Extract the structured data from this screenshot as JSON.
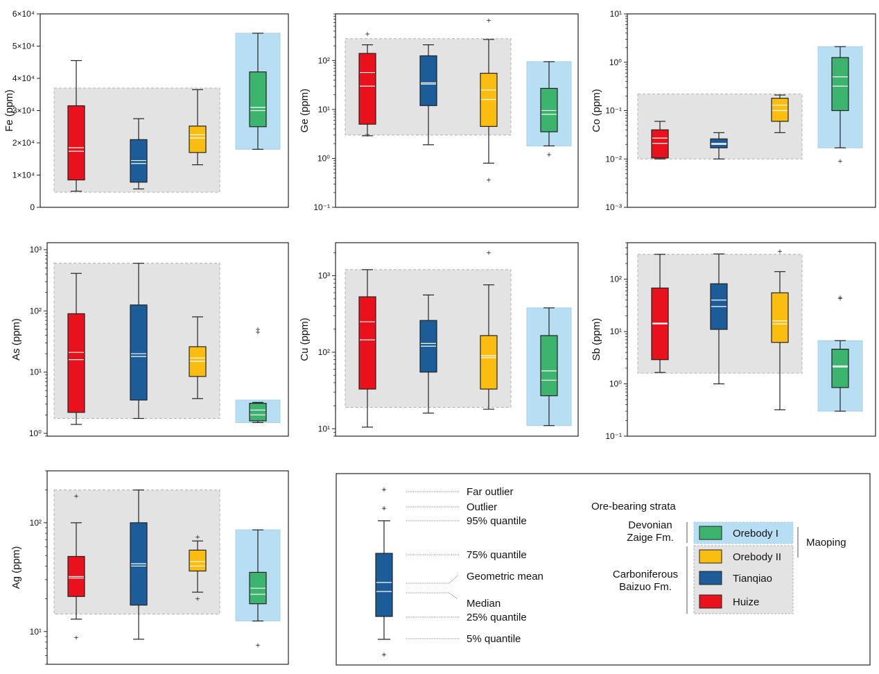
{
  "colors": {
    "Huize": "#e8111c",
    "Tianqiao": "#1c5c98",
    "Orebody II": "#fbbd0f",
    "Orebody I": "#3cb46e",
    "range_gray": "#e3e3e3",
    "range_blue": "#b8def4",
    "mean_line": "#ffffff",
    "median_line": "#ffffff"
  },
  "chart_data": [
    {
      "type": "box",
      "ylabel": "Fe (ppm)",
      "yscale": "linear",
      "ylim": [
        0,
        60000
      ],
      "yticks": [
        0,
        10000,
        20000,
        30000,
        40000,
        50000,
        60000
      ],
      "yticklabels": [
        "0",
        "1×10⁴",
        "2×10⁴",
        "3×10⁴",
        "4×10⁴",
        "5×10⁴",
        "6×10⁴"
      ],
      "range_boxes": [
        {
          "group": "Tianqiao-Huize",
          "color": "gray",
          "from": 0,
          "to": 2,
          "low": 4700,
          "high": 37000
        },
        {
          "group": "Maoping",
          "color": "blue",
          "from": 3,
          "to": 3,
          "low": 18000,
          "high": 54000
        }
      ],
      "series": [
        {
          "name": "Huize",
          "whisker_low": 5000,
          "q1": 8500,
          "median": 17400,
          "mean": 18500,
          "q3": 31500,
          "whisker_high": 45500,
          "outliers": []
        },
        {
          "name": "Tianqiao",
          "whisker_low": 5700,
          "q1": 7800,
          "median": 13600,
          "mean": 14500,
          "q3": 21000,
          "whisker_high": 27500,
          "outliers": []
        },
        {
          "name": "Orebody II",
          "whisker_low": 13200,
          "q1": 17000,
          "median": 21500,
          "mean": 22500,
          "q3": 25200,
          "whisker_high": 36500,
          "outliers": []
        },
        {
          "name": "Orebody I",
          "whisker_low": 18000,
          "q1": 25000,
          "median": 30000,
          "mean": 31000,
          "q3": 42000,
          "whisker_high": 54000,
          "outliers": []
        }
      ]
    },
    {
      "type": "box",
      "ylabel": "Ge (ppm)",
      "yscale": "log",
      "ylim": [
        0.1,
        900
      ],
      "yticks": [
        0.1,
        1,
        10,
        100
      ],
      "yticklabels": [
        "10⁻¹",
        "10⁰",
        "10¹",
        "10²"
      ],
      "range_boxes": [
        {
          "group": "Tianqiao-Huize",
          "color": "gray",
          "from": 0,
          "to": 2,
          "low": 3,
          "high": 280
        },
        {
          "group": "Maoping",
          "color": "blue",
          "from": 3,
          "to": 3,
          "low": 1.8,
          "high": 95
        }
      ],
      "series": [
        {
          "name": "Huize",
          "whisker_low": 2.9,
          "q1": 5,
          "median": 30,
          "mean": 57,
          "q3": 140,
          "whisker_high": 210,
          "outliers": [
            350,
            3.1
          ]
        },
        {
          "name": "Tianqiao",
          "whisker_low": 1.9,
          "q1": 12,
          "median": 33,
          "mean": 35,
          "q3": 125,
          "whisker_high": 210,
          "outliers": []
        },
        {
          "name": "Orebody II",
          "whisker_low": 0.8,
          "q1": 4.5,
          "median": 16,
          "mean": 25,
          "q3": 55,
          "whisker_high": 270,
          "outliers": [
            660,
            0.36
          ]
        },
        {
          "name": "Orebody I",
          "whisker_low": 1.8,
          "q1": 3.5,
          "median": 8,
          "mean": 9.5,
          "q3": 27,
          "whisker_high": 95,
          "outliers": [
            1.2
          ]
        }
      ]
    },
    {
      "type": "box",
      "ylabel": "Co (ppm)",
      "yscale": "log",
      "ylim": [
        0.001,
        10
      ],
      "yticks": [
        0.001,
        0.01,
        0.1,
        1,
        10
      ],
      "yticklabels": [
        "10⁻³",
        "10⁻²",
        "10⁻¹",
        "10⁰",
        "10¹"
      ],
      "range_boxes": [
        {
          "group": "Tianqiao-Huize",
          "color": "gray",
          "from": 0,
          "to": 2,
          "low": 0.01,
          "high": 0.22
        },
        {
          "group": "Maoping",
          "color": "blue",
          "from": 3,
          "to": 3,
          "low": 0.017,
          "high": 2.1
        }
      ],
      "series": [
        {
          "name": "Huize",
          "whisker_low": 0.01,
          "q1": 0.0105,
          "median": 0.021,
          "mean": 0.027,
          "q3": 0.04,
          "whisker_high": 0.06,
          "outliers": []
        },
        {
          "name": "Tianqiao",
          "whisker_low": 0.01,
          "q1": 0.017,
          "median": 0.02,
          "mean": 0.021,
          "q3": 0.026,
          "whisker_high": 0.035,
          "outliers": []
        },
        {
          "name": "Orebody II",
          "whisker_low": 0.035,
          "q1": 0.06,
          "median": 0.1,
          "mean": 0.13,
          "q3": 0.18,
          "whisker_high": 0.21,
          "outliers": []
        },
        {
          "name": "Orebody I",
          "whisker_low": 0.017,
          "q1": 0.1,
          "median": 0.32,
          "mean": 0.5,
          "q3": 1.25,
          "whisker_high": 2.1,
          "outliers": [
            0.009
          ]
        }
      ]
    },
    {
      "type": "box",
      "ylabel": "As (ppm)",
      "yscale": "log",
      "ylim": [
        0.9,
        1300
      ],
      "yticks": [
        1,
        10,
        100,
        1000
      ],
      "yticklabels": [
        "10⁰",
        "10¹",
        "10²",
        "10³"
      ],
      "range_boxes": [
        {
          "group": "Tianqiao-Huize",
          "color": "gray",
          "from": 0,
          "to": 2,
          "low": 1.75,
          "high": 600
        },
        {
          "group": "Maoping",
          "color": "blue",
          "from": 3,
          "to": 3,
          "low": 1.5,
          "high": 3.5
        }
      ],
      "series": [
        {
          "name": "Huize",
          "whisker_low": 1.4,
          "q1": 2.2,
          "median": 16,
          "mean": 21,
          "q3": 90,
          "whisker_high": 410,
          "outliers": []
        },
        {
          "name": "Tianqiao",
          "whisker_low": 1.75,
          "q1": 3.5,
          "median": 18,
          "mean": 20,
          "q3": 125,
          "whisker_high": 600,
          "outliers": []
        },
        {
          "name": "Orebody II",
          "whisker_low": 3.7,
          "q1": 8.5,
          "median": 15,
          "mean": 17,
          "q3": 26,
          "whisker_high": 80,
          "outliers": []
        },
        {
          "name": "Orebody I",
          "whisker_low": 1.5,
          "q1": 1.6,
          "median": 2,
          "mean": 2.4,
          "q3": 3.1,
          "whisker_high": 3.2,
          "outliers": [
            45,
            50
          ]
        }
      ]
    },
    {
      "type": "box",
      "ylabel": "Cu (ppm)",
      "yscale": "log",
      "ylim": [
        8,
        2700
      ],
      "yticks": [
        10,
        100,
        1000
      ],
      "yticklabels": [
        "10¹",
        "10²",
        "10³"
      ],
      "range_boxes": [
        {
          "group": "Tianqiao-Huize",
          "color": "gray",
          "from": 0,
          "to": 2,
          "low": 19,
          "high": 1200
        },
        {
          "group": "Maoping",
          "color": "blue",
          "from": 3,
          "to": 3,
          "low": 11,
          "high": 380
        }
      ],
      "series": [
        {
          "name": "Huize",
          "whisker_low": 10.5,
          "q1": 33,
          "median": 145,
          "mean": 250,
          "q3": 530,
          "whisker_high": 1200,
          "outliers": []
        },
        {
          "name": "Tianqiao",
          "whisker_low": 16,
          "q1": 55,
          "median": 120,
          "mean": 130,
          "q3": 260,
          "whisker_high": 560,
          "outliers": []
        },
        {
          "name": "Orebody II",
          "whisker_low": 18,
          "q1": 33,
          "median": 85,
          "mean": 90,
          "q3": 165,
          "whisker_high": 760,
          "outliers": [
            2000
          ]
        },
        {
          "name": "Orebody I",
          "whisker_low": 11,
          "q1": 27,
          "median": 43,
          "mean": 57,
          "q3": 165,
          "whisker_high": 380,
          "outliers": []
        }
      ]
    },
    {
      "type": "box",
      "ylabel": "Sb (ppm)",
      "yscale": "log",
      "ylim": [
        0.1,
        500
      ],
      "yticks": [
        0.1,
        1,
        10,
        100
      ],
      "yticklabels": [
        "10⁻¹",
        "10⁰",
        "10¹",
        "10²"
      ],
      "range_boxes": [
        {
          "group": "Tianqiao-Huize",
          "color": "gray",
          "from": 0,
          "to": 2,
          "low": 1.6,
          "high": 300
        },
        {
          "group": "Maoping",
          "color": "blue",
          "from": 3,
          "to": 3,
          "low": 0.3,
          "high": 6.7
        }
      ],
      "series": [
        {
          "name": "Huize",
          "whisker_low": 1.65,
          "q1": 2.9,
          "median": 14,
          "mean": 14.5,
          "q3": 68,
          "whisker_high": 300,
          "outliers": []
        },
        {
          "name": "Tianqiao",
          "whisker_low": 1,
          "q1": 11,
          "median": 30,
          "mean": 40,
          "q3": 82,
          "whisker_high": 305,
          "outliers": []
        },
        {
          "name": "Orebody II",
          "whisker_low": 0.32,
          "q1": 6.2,
          "median": 14,
          "mean": 16,
          "q3": 55,
          "whisker_high": 140,
          "outliers": [
            340
          ]
        },
        {
          "name": "Orebody I",
          "whisker_low": 0.3,
          "q1": 0.85,
          "median": 2.1,
          "mean": 2.2,
          "q3": 4.6,
          "whisker_high": 6.7,
          "outliers": [
            43,
            45
          ]
        }
      ]
    },
    {
      "type": "box",
      "ylabel": "Ag (ppm)",
      "yscale": "log",
      "ylim": [
        5,
        300
      ],
      "yticks": [
        10,
        100
      ],
      "yticklabels": [
        "10¹",
        "10²"
      ],
      "range_boxes": [
        {
          "group": "Tianqiao-Huize",
          "color": "gray",
          "from": 0,
          "to": 2,
          "low": 14.5,
          "high": 200
        },
        {
          "group": "Maoping",
          "color": "blue",
          "from": 3,
          "to": 3,
          "low": 12.5,
          "high": 86
        }
      ],
      "series": [
        {
          "name": "Huize",
          "whisker_low": 13,
          "q1": 21,
          "median": 31,
          "mean": 32,
          "q3": 49,
          "whisker_high": 100,
          "outliers": [
            175,
            8.8
          ]
        },
        {
          "name": "Tianqiao",
          "whisker_low": 8.5,
          "q1": 17.5,
          "median": 40,
          "mean": 42,
          "q3": 100,
          "whisker_high": 200,
          "outliers": []
        },
        {
          "name": "Orebody II",
          "whisker_low": 23,
          "q1": 36,
          "median": 40,
          "mean": 44,
          "q3": 56,
          "whisker_high": 68,
          "outliers": [
            74,
            20
          ]
        },
        {
          "name": "Orebody I",
          "whisker_low": 12.5,
          "q1": 18,
          "median": 22,
          "mean": 25,
          "q3": 35,
          "whisker_high": 86,
          "outliers": [
            7.5
          ]
        }
      ]
    }
  ],
  "legend": {
    "stat_labels": [
      "Far outlier",
      "Outlier",
      "95% quantile",
      "75% quantile",
      "Geometric mean",
      "Median",
      "25% quantile",
      "5% quantile"
    ],
    "strata_title": "Ore-bearing strata",
    "devonian_line1": "Devonian",
    "devonian_line2": "Zaige Fm.",
    "carboniferous_line1": "Carboniferous",
    "carboniferous_line2": "Baizuo Fm.",
    "entries": [
      "Orebody I",
      "Orebody II",
      "Tianqiao",
      "Huize"
    ],
    "group_label": "Maoping"
  }
}
